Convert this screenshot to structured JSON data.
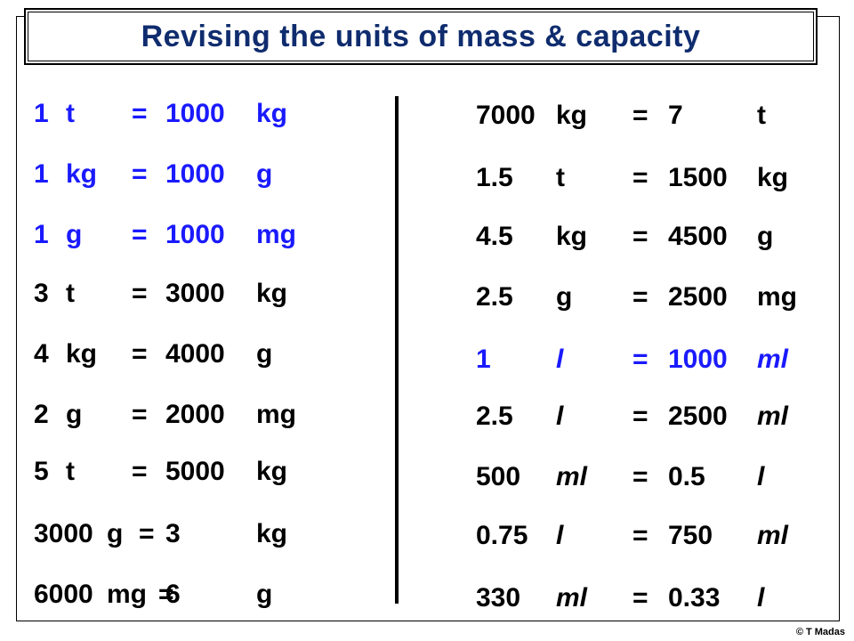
{
  "title": "Revising the units of mass & capacity",
  "equals": "=",
  "italic_units": [
    "l",
    "ml"
  ],
  "left": [
    {
      "qty": "1",
      "unit": "t",
      "answer": "1000",
      "answer_unit": "kg",
      "color": "#1a1aff"
    },
    {
      "qty": "1",
      "unit": "kg",
      "answer": "1000",
      "answer_unit": "g",
      "color": "#1a1aff"
    },
    {
      "qty": "1",
      "unit": "g",
      "answer": "1000",
      "answer_unit": "mg",
      "color": "#1a1aff"
    },
    {
      "qty": "3",
      "unit": "t",
      "answer": "3000",
      "answer_unit": "kg",
      "color": "#000000"
    },
    {
      "qty": "4",
      "unit": "kg",
      "answer": "4000",
      "answer_unit": "g",
      "color": "#000000"
    },
    {
      "qty": "2",
      "unit": "g",
      "answer": "2000",
      "answer_unit": "mg",
      "color": "#000000"
    },
    {
      "qty": "5",
      "unit": "t",
      "answer": "5000",
      "answer_unit": "kg",
      "color": "#000000"
    },
    {
      "qty": "3000",
      "unit": "g",
      "answer": "3",
      "answer_unit": "kg",
      "color": "#000000"
    },
    {
      "qty": "6000",
      "unit": "mg",
      "answer": "6",
      "answer_unit": "g",
      "color": "#000000"
    }
  ],
  "right": [
    {
      "qty": "7000",
      "unit": "kg",
      "answer": "7",
      "answer_unit": "t",
      "color": "#000000"
    },
    {
      "qty": "1.5",
      "unit": "t",
      "answer": "1500",
      "answer_unit": "kg",
      "color": "#000000"
    },
    {
      "qty": "4.5",
      "unit": "kg",
      "answer": "4500",
      "answer_unit": "g",
      "color": "#000000"
    },
    {
      "qty": "2.5",
      "unit": "g",
      "answer": "2500",
      "answer_unit": "mg",
      "color": "#000000"
    },
    {
      "qty": "1",
      "unit": "l",
      "answer": "1000",
      "answer_unit": "ml",
      "color": "#1a1aff"
    },
    {
      "qty": "2.5",
      "unit": "l",
      "answer": "2500",
      "answer_unit": "ml",
      "color": "#000000"
    },
    {
      "qty": "500",
      "unit": "ml",
      "answer": "0.5",
      "answer_unit": "l",
      "color": "#000000"
    },
    {
      "qty": "0.75",
      "unit": "l",
      "answer": "750",
      "answer_unit": "ml",
      "color": "#000000"
    },
    {
      "qty": "330",
      "unit": "ml",
      "answer": "0.33",
      "answer_unit": "l",
      "color": "#000000"
    }
  ],
  "copyright": "© T Madas"
}
